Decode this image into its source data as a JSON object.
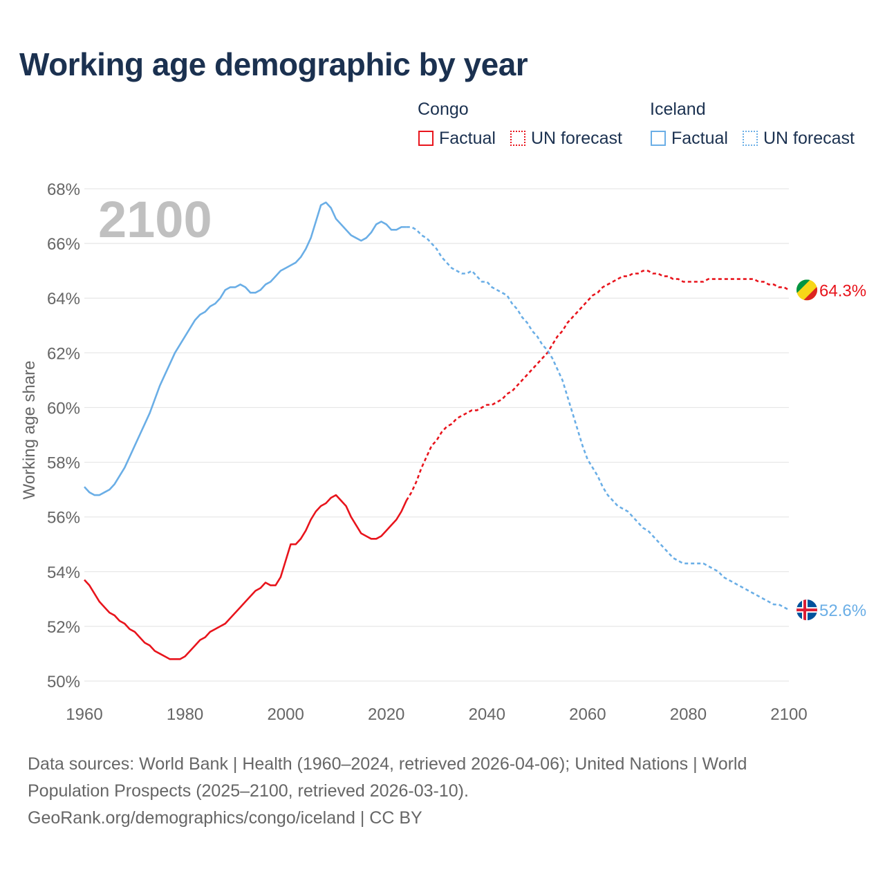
{
  "title": "Working age demographic by year",
  "legend": {
    "congo_title": "Congo",
    "iceland_title": "Iceland",
    "factual": "Factual",
    "forecast": "UN forecast"
  },
  "footer": {
    "line1": "Data sources: World Bank | Health (1960–2024, retrieved 2026-04-06); United Nations | World",
    "line2": "Population Prospects (2025–2100, retrieved 2026-03-10).",
    "line3": "GeoRank.org/demographics/congo/iceland | CC BY"
  },
  "colors": {
    "congo": "#e8141c",
    "iceland": "#6aaee6",
    "title": "#1b3150",
    "axis_text": "#666666",
    "grid": "#e6e6e6",
    "year_watermark": "#c0c0c0"
  },
  "chart_data": {
    "type": "line",
    "title": "Working age demographic by year",
    "ylabel": "Working age share",
    "xlabel": "",
    "year_label": "2100",
    "xlim": [
      1960,
      2100
    ],
    "ylim": [
      50,
      68
    ],
    "x_ticks": [
      "1960",
      "1980",
      "2000",
      "2020",
      "2040",
      "2060",
      "2080",
      "2100"
    ],
    "y_ticks": [
      "50%",
      "52%",
      "54%",
      "56%",
      "58%",
      "60%",
      "62%",
      "64%",
      "66%",
      "68%"
    ],
    "grid": true,
    "factual_end_year": 2024,
    "series": [
      {
        "name": "Congo",
        "end_label": "64.3%",
        "color": "#e8141c",
        "x": [
          1960,
          1961,
          1962,
          1963,
          1964,
          1965,
          1966,
          1967,
          1968,
          1969,
          1970,
          1971,
          1972,
          1973,
          1974,
          1975,
          1976,
          1977,
          1978,
          1979,
          1980,
          1981,
          1982,
          1983,
          1984,
          1985,
          1986,
          1987,
          1988,
          1989,
          1990,
          1991,
          1992,
          1993,
          1994,
          1995,
          1996,
          1997,
          1998,
          1999,
          2000,
          2001,
          2002,
          2003,
          2004,
          2005,
          2006,
          2007,
          2008,
          2009,
          2010,
          2011,
          2012,
          2013,
          2014,
          2015,
          2016,
          2017,
          2018,
          2019,
          2020,
          2021,
          2022,
          2023,
          2024,
          2025,
          2026,
          2027,
          2028,
          2029,
          2030,
          2031,
          2032,
          2033,
          2034,
          2035,
          2036,
          2037,
          2038,
          2039,
          2040,
          2041,
          2042,
          2043,
          2044,
          2045,
          2046,
          2047,
          2048,
          2049,
          2050,
          2051,
          2052,
          2053,
          2054,
          2055,
          2056,
          2057,
          2058,
          2059,
          2060,
          2061,
          2062,
          2063,
          2064,
          2065,
          2066,
          2067,
          2068,
          2069,
          2070,
          2071,
          2072,
          2073,
          2074,
          2075,
          2076,
          2077,
          2078,
          2079,
          2080,
          2081,
          2082,
          2083,
          2084,
          2085,
          2086,
          2087,
          2088,
          2089,
          2090,
          2091,
          2092,
          2093,
          2094,
          2095,
          2096,
          2097,
          2098,
          2099,
          2100
        ],
        "values": [
          53.7,
          53.5,
          53.2,
          52.9,
          52.7,
          52.5,
          52.4,
          52.2,
          52.1,
          51.9,
          51.8,
          51.6,
          51.4,
          51.3,
          51.1,
          51.0,
          50.9,
          50.8,
          50.8,
          50.8,
          50.9,
          51.1,
          51.3,
          51.5,
          51.6,
          51.8,
          51.9,
          52.0,
          52.1,
          52.3,
          52.5,
          52.7,
          52.9,
          53.1,
          53.3,
          53.4,
          53.6,
          53.5,
          53.5,
          53.8,
          54.4,
          55.0,
          55.0,
          55.2,
          55.5,
          55.9,
          56.2,
          56.4,
          56.5,
          56.7,
          56.8,
          56.6,
          56.4,
          56.0,
          55.7,
          55.4,
          55.3,
          55.2,
          55.2,
          55.3,
          55.5,
          55.7,
          55.9,
          56.2,
          56.6,
          56.9,
          57.3,
          57.8,
          58.2,
          58.6,
          58.8,
          59.1,
          59.3,
          59.4,
          59.6,
          59.7,
          59.8,
          59.9,
          59.9,
          60.0,
          60.1,
          60.1,
          60.2,
          60.3,
          60.5,
          60.6,
          60.8,
          61.0,
          61.2,
          61.4,
          61.6,
          61.8,
          62.0,
          62.3,
          62.6,
          62.8,
          63.1,
          63.3,
          63.5,
          63.7,
          63.9,
          64.1,
          64.2,
          64.4,
          64.5,
          64.6,
          64.7,
          64.8,
          64.8,
          64.9,
          64.9,
          65.0,
          65.0,
          64.9,
          64.9,
          64.8,
          64.8,
          64.7,
          64.7,
          64.6,
          64.6,
          64.6,
          64.6,
          64.6,
          64.7,
          64.7,
          64.7,
          64.7,
          64.7,
          64.7,
          64.7,
          64.7,
          64.7,
          64.7,
          64.6,
          64.6,
          64.5,
          64.5,
          64.4,
          64.4,
          64.3
        ]
      },
      {
        "name": "Iceland",
        "end_label": "52.6%",
        "color": "#6aaee6",
        "x": [
          1960,
          1961,
          1962,
          1963,
          1964,
          1965,
          1966,
          1967,
          1968,
          1969,
          1970,
          1971,
          1972,
          1973,
          1974,
          1975,
          1976,
          1977,
          1978,
          1979,
          1980,
          1981,
          1982,
          1983,
          1984,
          1985,
          1986,
          1987,
          1988,
          1989,
          1990,
          1991,
          1992,
          1993,
          1994,
          1995,
          1996,
          1997,
          1998,
          1999,
          2000,
          2001,
          2002,
          2003,
          2004,
          2005,
          2006,
          2007,
          2008,
          2009,
          2010,
          2011,
          2012,
          2013,
          2014,
          2015,
          2016,
          2017,
          2018,
          2019,
          2020,
          2021,
          2022,
          2023,
          2024,
          2025,
          2026,
          2027,
          2028,
          2029,
          2030,
          2031,
          2032,
          2033,
          2034,
          2035,
          2036,
          2037,
          2038,
          2039,
          2040,
          2041,
          2042,
          2043,
          2044,
          2045,
          2046,
          2047,
          2048,
          2049,
          2050,
          2051,
          2052,
          2053,
          2054,
          2055,
          2056,
          2057,
          2058,
          2059,
          2060,
          2061,
          2062,
          2063,
          2064,
          2065,
          2066,
          2067,
          2068,
          2069,
          2070,
          2071,
          2072,
          2073,
          2074,
          2075,
          2076,
          2077,
          2078,
          2079,
          2080,
          2081,
          2082,
          2083,
          2084,
          2085,
          2086,
          2087,
          2088,
          2089,
          2090,
          2091,
          2092,
          2093,
          2094,
          2095,
          2096,
          2097,
          2098,
          2099,
          2100
        ],
        "values": [
          57.1,
          56.9,
          56.8,
          56.8,
          56.9,
          57.0,
          57.2,
          57.5,
          57.8,
          58.2,
          58.6,
          59.0,
          59.4,
          59.8,
          60.3,
          60.8,
          61.2,
          61.6,
          62.0,
          62.3,
          62.6,
          62.9,
          63.2,
          63.4,
          63.5,
          63.7,
          63.8,
          64.0,
          64.3,
          64.4,
          64.4,
          64.5,
          64.4,
          64.2,
          64.2,
          64.3,
          64.5,
          64.6,
          64.8,
          65.0,
          65.1,
          65.2,
          65.3,
          65.5,
          65.8,
          66.2,
          66.8,
          67.4,
          67.5,
          67.3,
          66.9,
          66.7,
          66.5,
          66.3,
          66.2,
          66.1,
          66.2,
          66.4,
          66.7,
          66.8,
          66.7,
          66.5,
          66.5,
          66.6,
          66.6,
          66.6,
          66.5,
          66.3,
          66.2,
          66.0,
          65.8,
          65.5,
          65.3,
          65.1,
          65.0,
          64.9,
          64.9,
          65.0,
          64.8,
          64.6,
          64.6,
          64.4,
          64.3,
          64.2,
          64.1,
          63.8,
          63.6,
          63.3,
          63.1,
          62.8,
          62.6,
          62.3,
          62.1,
          61.8,
          61.4,
          61.0,
          60.4,
          59.8,
          59.2,
          58.6,
          58.1,
          57.8,
          57.5,
          57.1,
          56.8,
          56.6,
          56.4,
          56.3,
          56.2,
          56.0,
          55.8,
          55.6,
          55.5,
          55.3,
          55.1,
          54.9,
          54.7,
          54.5,
          54.4,
          54.3,
          54.3,
          54.3,
          54.3,
          54.3,
          54.2,
          54.1,
          54.0,
          53.8,
          53.7,
          53.6,
          53.5,
          53.4,
          53.3,
          53.2,
          53.1,
          53.0,
          52.9,
          52.8,
          52.8,
          52.7,
          52.6
        ]
      }
    ]
  }
}
